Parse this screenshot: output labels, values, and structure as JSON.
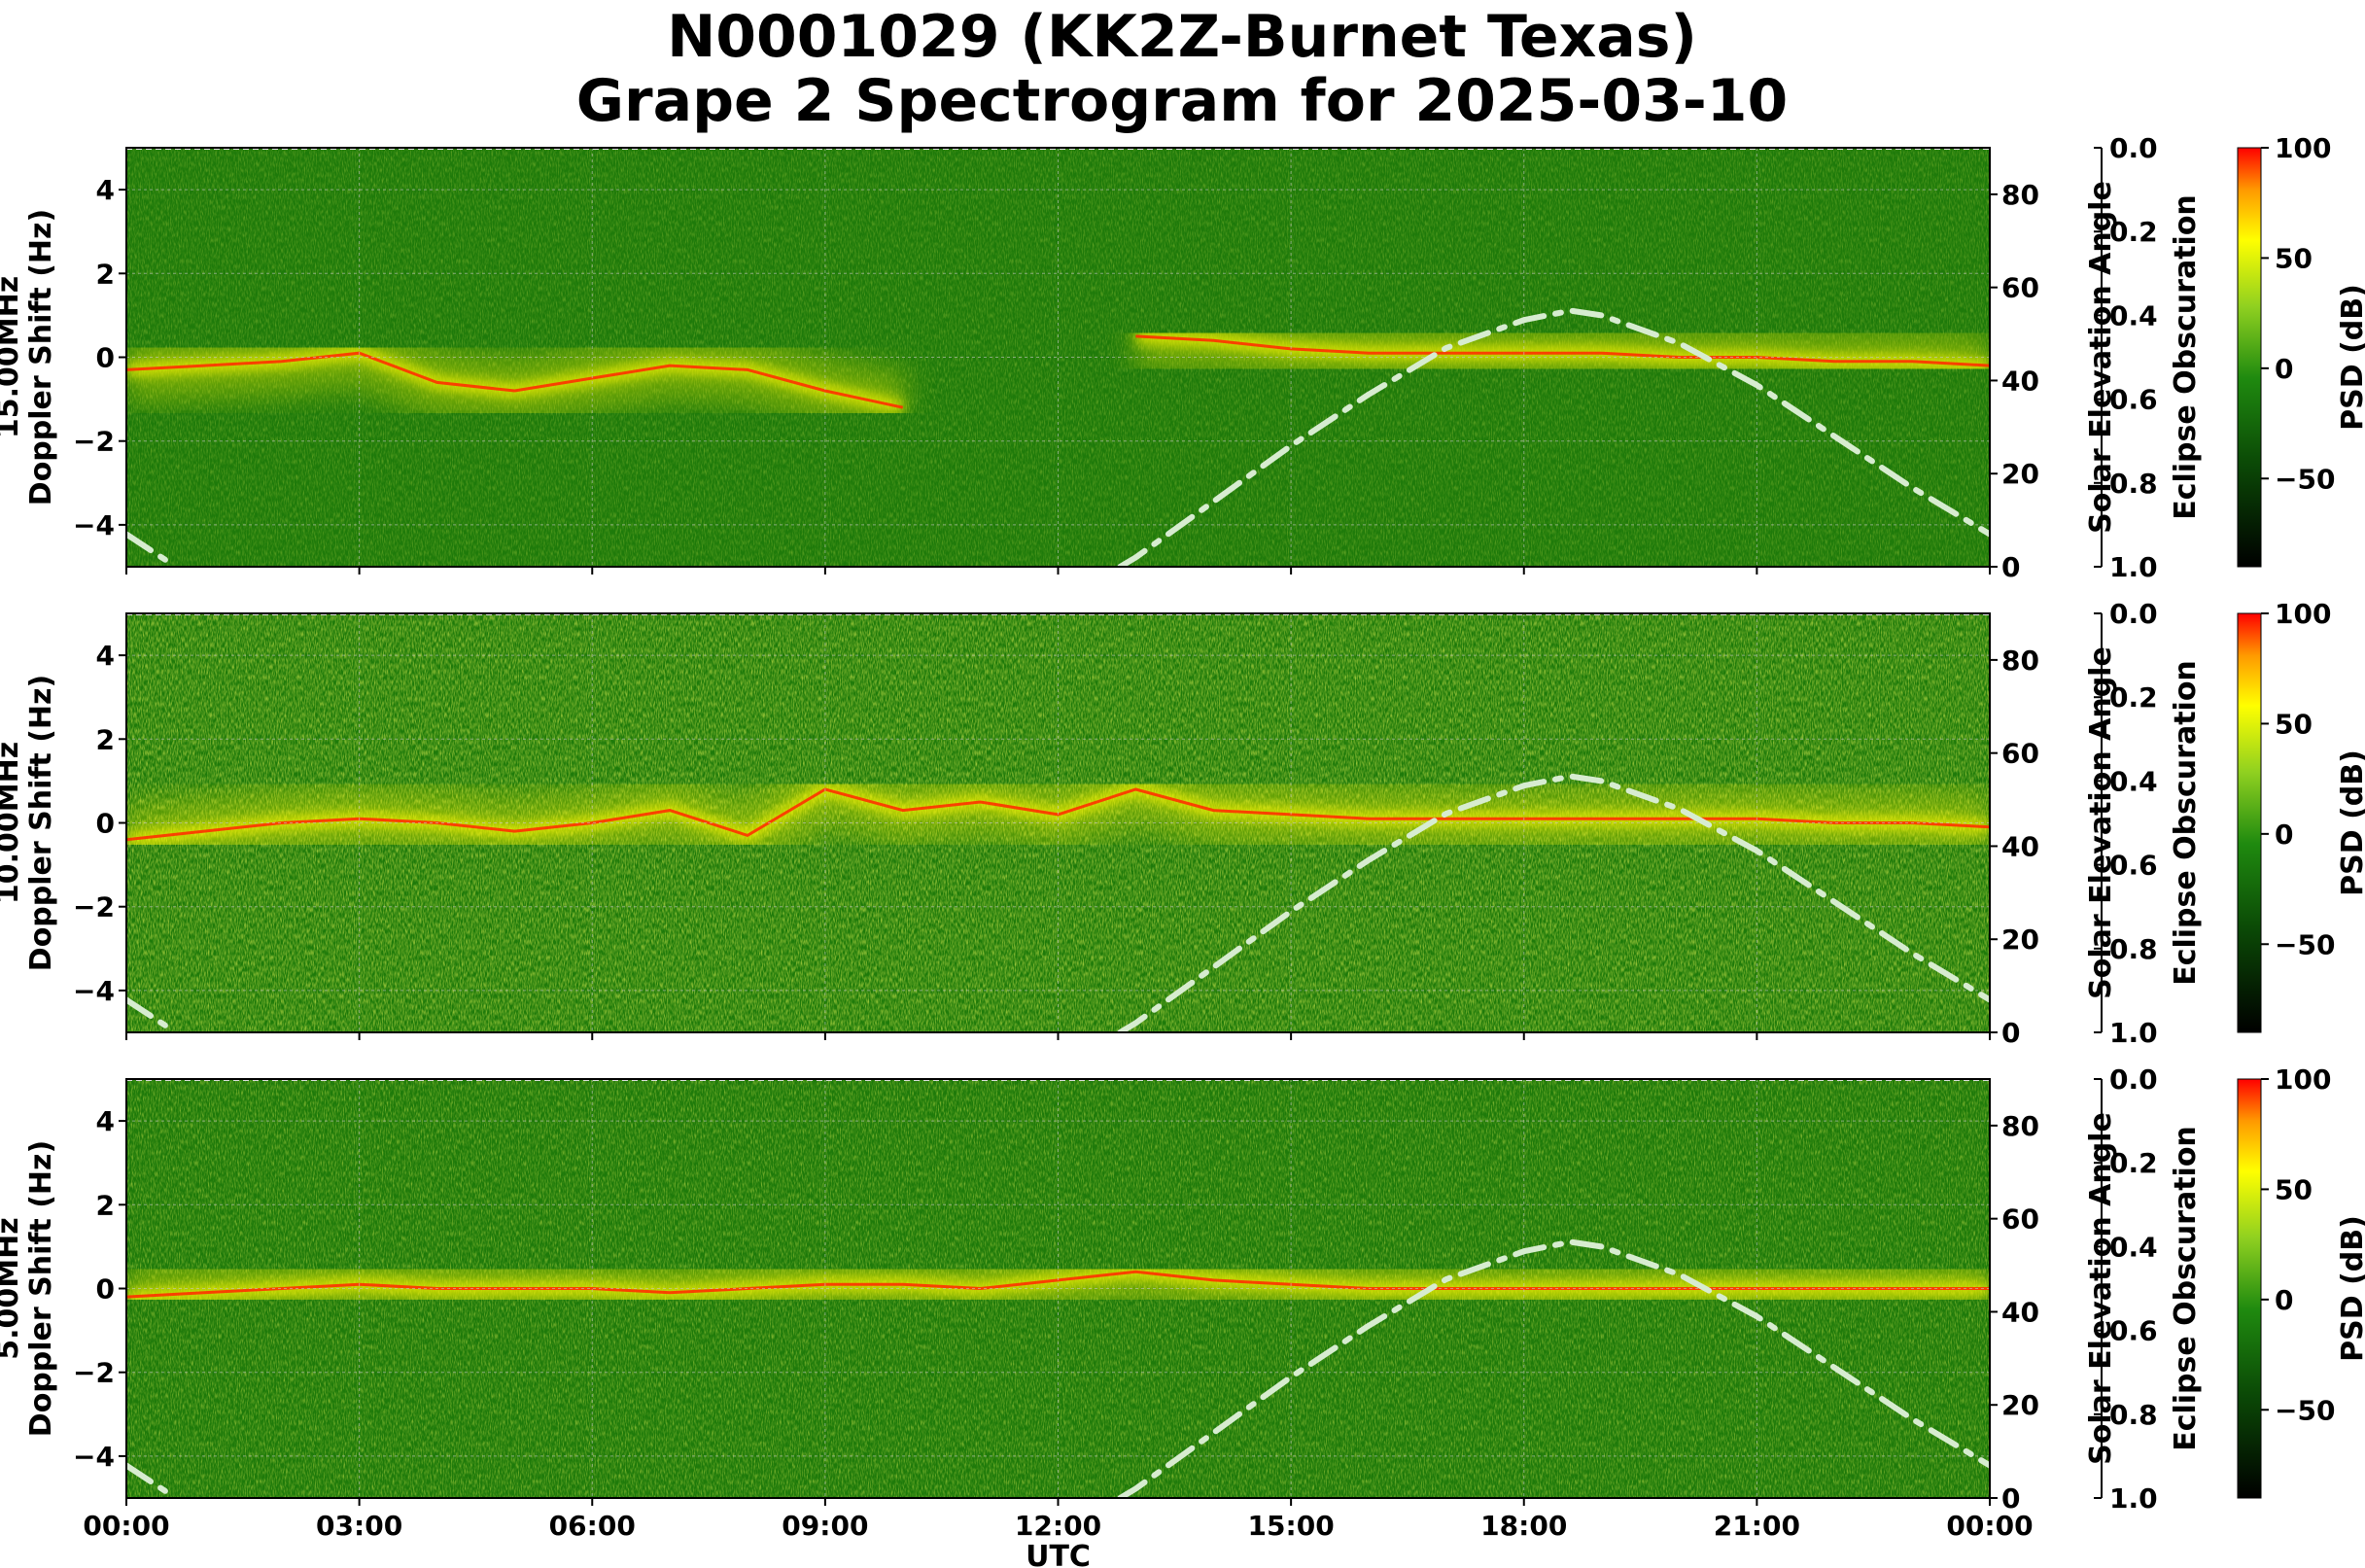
{
  "title_line1": "N0001029 (KK2Z-Burnet Texas)",
  "title_line2": "Grape 2 Spectrogram for 2025-03-10",
  "chart_data": [
    {
      "type": "heatmap",
      "freq_label": "15.00MHz",
      "ylabel": "Doppler Shift (Hz)",
      "xlabel": "",
      "xticks": [
        "00:00",
        "03:00",
        "06:00",
        "09:00",
        "12:00",
        "15:00",
        "18:00",
        "21:00",
        "00:00"
      ],
      "ylim": [
        -5,
        5
      ],
      "yticks": [
        -4,
        -2,
        0,
        2,
        4
      ],
      "xlim_hours": [
        0,
        24
      ],
      "doppler_trace": {
        "x_hours": [
          0,
          1,
          2,
          3,
          4,
          5,
          6,
          7,
          8,
          9,
          10,
          11,
          12,
          13,
          14,
          15,
          16,
          17,
          18,
          19,
          20,
          21,
          22,
          23,
          24
        ],
        "y_hz": [
          -0.3,
          -0.2,
          -0.1,
          0.1,
          -0.6,
          -0.8,
          -0.5,
          -0.2,
          -0.3,
          -0.8,
          -1.2,
          null,
          null,
          0.5,
          0.4,
          0.2,
          0.1,
          0.1,
          0.1,
          0.1,
          0.0,
          0.0,
          -0.1,
          -0.1,
          -0.2
        ]
      },
      "right_axis": {
        "label": "Solar Elevation Angle",
        "ylim": [
          0,
          90
        ],
        "ticks": [
          0,
          20,
          40,
          60,
          80
        ]
      },
      "eclipse_axis": {
        "label": "Eclipse Obscuration",
        "ylim": [
          1.0,
          0.0
        ],
        "ticks": [
          "0.0",
          "0.2",
          "0.4",
          "0.6",
          "0.8",
          "1.0"
        ]
      },
      "colorbar": {
        "label": "PSD (dB)",
        "range": [
          -90,
          100
        ],
        "ticks": [
          100,
          50,
          0,
          -50
        ]
      }
    },
    {
      "type": "heatmap",
      "freq_label": "10.00MHz",
      "ylabel": "Doppler Shift (Hz)",
      "xlabel": "",
      "xticks": [
        "00:00",
        "03:00",
        "06:00",
        "09:00",
        "12:00",
        "15:00",
        "18:00",
        "21:00",
        "00:00"
      ],
      "ylim": [
        -5,
        5
      ],
      "yticks": [
        -4,
        -2,
        0,
        2,
        4
      ],
      "xlim_hours": [
        0,
        24
      ],
      "doppler_trace": {
        "x_hours": [
          0,
          1,
          2,
          3,
          4,
          5,
          6,
          7,
          8,
          9,
          10,
          11,
          12,
          13,
          14,
          15,
          16,
          17,
          18,
          19,
          20,
          21,
          22,
          23,
          24
        ],
        "y_hz": [
          -0.4,
          -0.2,
          0.0,
          0.1,
          0.0,
          -0.2,
          0.0,
          0.3,
          -0.3,
          0.8,
          0.3,
          0.5,
          0.2,
          0.8,
          0.3,
          0.2,
          0.1,
          0.1,
          0.1,
          0.1,
          0.1,
          0.1,
          0.0,
          0.0,
          -0.1
        ]
      },
      "right_axis": {
        "label": "Solar Elevation Angle",
        "ylim": [
          0,
          90
        ],
        "ticks": [
          0,
          20,
          40,
          60,
          80
        ]
      },
      "eclipse_axis": {
        "label": "Eclipse Obscuration",
        "ylim": [
          1.0,
          0.0
        ],
        "ticks": [
          "0.0",
          "0.2",
          "0.4",
          "0.6",
          "0.8",
          "1.0"
        ]
      },
      "colorbar": {
        "label": "PSD (dB)",
        "range": [
          -90,
          100
        ],
        "ticks": [
          100,
          50,
          0,
          -50
        ]
      }
    },
    {
      "type": "heatmap",
      "freq_label": "5.00MHz",
      "ylabel": "Doppler Shift (Hz)",
      "xlabel": "UTC",
      "xticks": [
        "00:00",
        "03:00",
        "06:00",
        "09:00",
        "12:00",
        "15:00",
        "18:00",
        "21:00",
        "00:00"
      ],
      "ylim": [
        -5,
        5
      ],
      "yticks": [
        -4,
        -2,
        0,
        2,
        4
      ],
      "xlim_hours": [
        0,
        24
      ],
      "doppler_trace": {
        "x_hours": [
          0,
          1,
          2,
          3,
          4,
          5,
          6,
          7,
          8,
          9,
          10,
          11,
          12,
          13,
          14,
          15,
          16,
          17,
          18,
          19,
          20,
          21,
          22,
          23,
          24
        ],
        "y_hz": [
          -0.2,
          -0.1,
          0.0,
          0.1,
          0.0,
          0.0,
          0.0,
          -0.1,
          0.0,
          0.1,
          0.1,
          0.0,
          0.2,
          0.4,
          0.2,
          0.1,
          0.0,
          0.0,
          0.0,
          0.0,
          0.0,
          0.0,
          0.0,
          0.0,
          0.0
        ]
      },
      "right_axis": {
        "label": "Solar Elevation Angle",
        "ylim": [
          0,
          90
        ],
        "ticks": [
          0,
          20,
          40,
          60,
          80
        ]
      },
      "eclipse_axis": {
        "label": "Eclipse Obscuration",
        "ylim": [
          1.0,
          0.0
        ],
        "ticks": [
          "0.0",
          "0.2",
          "0.4",
          "0.6",
          "0.8",
          "1.0"
        ]
      },
      "colorbar": {
        "label": "PSD (dB)",
        "range": [
          -90,
          100
        ],
        "ticks": [
          100,
          50,
          0,
          -50
        ]
      }
    }
  ],
  "solar_elevation": {
    "x_hours": [
      0,
      0.5,
      1,
      2,
      3,
      4,
      5,
      6,
      7,
      8,
      9,
      10,
      11,
      12,
      12.8,
      13,
      14,
      15,
      16,
      17,
      18,
      18.6,
      19,
      20,
      21,
      22,
      23,
      24
    ],
    "deg": [
      7,
      1.5,
      null,
      null,
      null,
      null,
      null,
      null,
      null,
      null,
      null,
      null,
      null,
      null,
      0,
      2,
      14,
      26,
      37,
      47,
      53,
      55,
      54,
      48,
      39,
      28,
      17,
      7
    ]
  },
  "colors": {
    "spectrogram_background": "#1e7a0a",
    "curve": "#d7ecd0",
    "grid": "#c8c8c8",
    "trace_hot": "#ff3000",
    "trace_warm": "#f2f000"
  }
}
